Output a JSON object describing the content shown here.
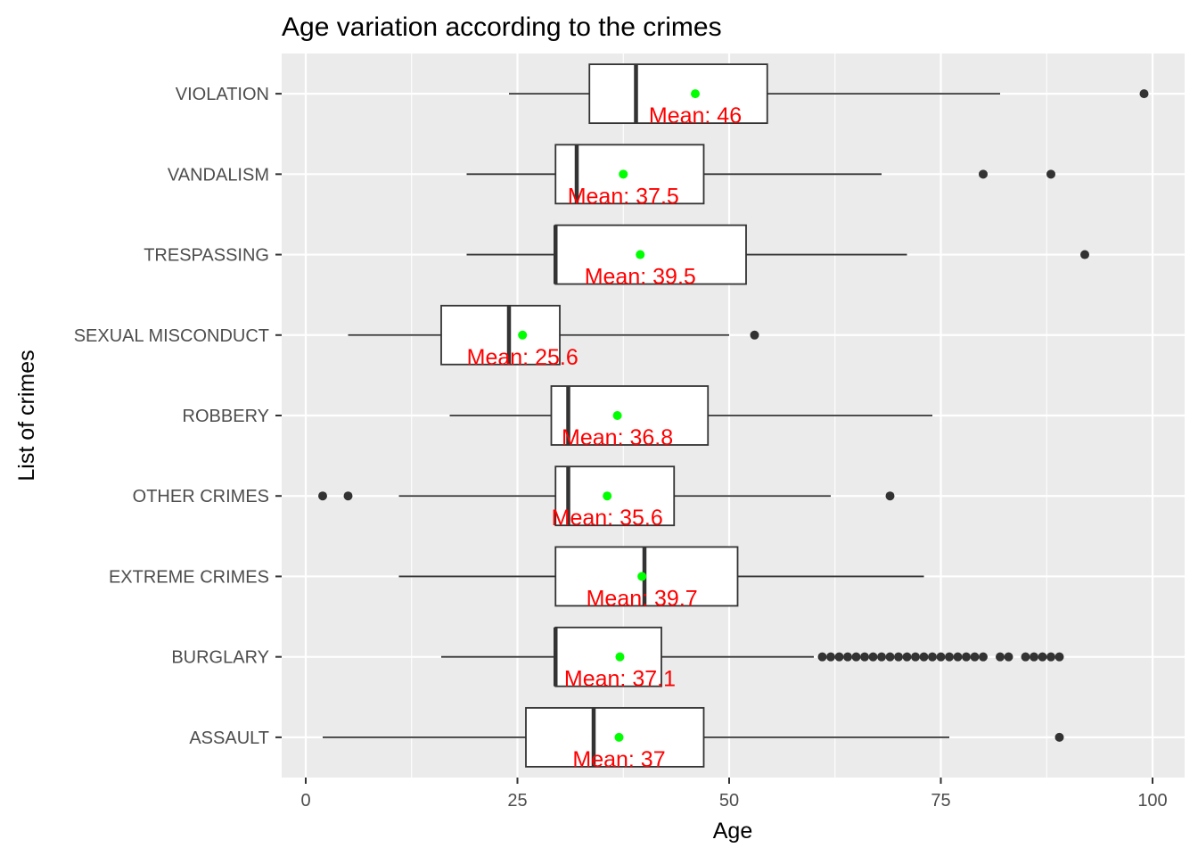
{
  "chart_data": {
    "type": "boxplot",
    "orientation": "horizontal",
    "title": "Age variation according to the  crimes",
    "xlabel": "Age",
    "ylabel": "List of crimes",
    "xlim": [
      -3,
      104
    ],
    "xticks": [
      0,
      25,
      50,
      75,
      100
    ],
    "grid": true,
    "legend": "none",
    "colors": {
      "panel": "#EBEBEB",
      "grid": "#FFFFFF",
      "box_fill": "#FFFFFF",
      "box_stroke": "#333333",
      "outlier": "#333333",
      "mean_point": "#00FF00",
      "mean_label": "#FF0000"
    },
    "categories": [
      "ASSAULT",
      "BURGLARY",
      "EXTREME CRIMES",
      "OTHER CRIMES",
      "ROBBERY",
      "SEXUAL MISCONDUCT",
      "TRESPASSING",
      "VANDALISM",
      "VIOLATION"
    ],
    "series": [
      {
        "category": "ASSAULT",
        "whisker_low": 2,
        "q1": 26,
        "median": 34,
        "q3": 47,
        "whisker_high": 76,
        "mean": 37,
        "mean_label": "Mean: 37",
        "outliers": [
          89
        ]
      },
      {
        "category": "BURGLARY",
        "whisker_low": 16,
        "q1": 29.5,
        "median": 29.5,
        "q3": 42,
        "whisker_high": 60,
        "mean": 37.1,
        "mean_label": "Mean: 37.1",
        "outliers": [
          61,
          62,
          63,
          64,
          65,
          66,
          67,
          68,
          69,
          70,
          71,
          72,
          73,
          74,
          75,
          76,
          77,
          78,
          79,
          80,
          82,
          83,
          85,
          86,
          87,
          88,
          89
        ]
      },
      {
        "category": "EXTREME CRIMES",
        "whisker_low": 11,
        "q1": 29.5,
        "median": 40,
        "q3": 51,
        "whisker_high": 73,
        "mean": 39.7,
        "mean_label": "Mean: 39.7",
        "outliers": []
      },
      {
        "category": "OTHER CRIMES",
        "whisker_low": 11,
        "q1": 29.5,
        "median": 31,
        "q3": 43.5,
        "whisker_high": 62,
        "mean": 35.6,
        "mean_label": "Mean: 35.6",
        "outliers": [
          2,
          5,
          69
        ]
      },
      {
        "category": "ROBBERY",
        "whisker_low": 17,
        "q1": 29,
        "median": 31,
        "q3": 47.5,
        "whisker_high": 74,
        "mean": 36.8,
        "mean_label": "Mean: 36.8",
        "outliers": []
      },
      {
        "category": "SEXUAL MISCONDUCT",
        "whisker_low": 5,
        "q1": 16,
        "median": 24,
        "q3": 30,
        "whisker_high": 50,
        "mean": 25.6,
        "mean_label": "Mean: 25.6",
        "outliers": [
          53
        ]
      },
      {
        "category": "TRESPASSING",
        "whisker_low": 19,
        "q1": 29.5,
        "median": 29.5,
        "q3": 52,
        "whisker_high": 71,
        "mean": 39.5,
        "mean_label": "Mean: 39.5",
        "outliers": [
          92
        ]
      },
      {
        "category": "VANDALISM",
        "whisker_low": 19,
        "q1": 29.5,
        "median": 32,
        "q3": 47,
        "whisker_high": 68,
        "mean": 37.5,
        "mean_label": "Mean: 37.5",
        "outliers": [
          80,
          88
        ]
      },
      {
        "category": "VIOLATION",
        "whisker_low": 24,
        "q1": 33.5,
        "median": 39,
        "q3": 54.5,
        "whisker_high": 82,
        "mean": 46,
        "mean_label": "Mean: 46",
        "outliers": [
          99
        ]
      }
    ]
  }
}
